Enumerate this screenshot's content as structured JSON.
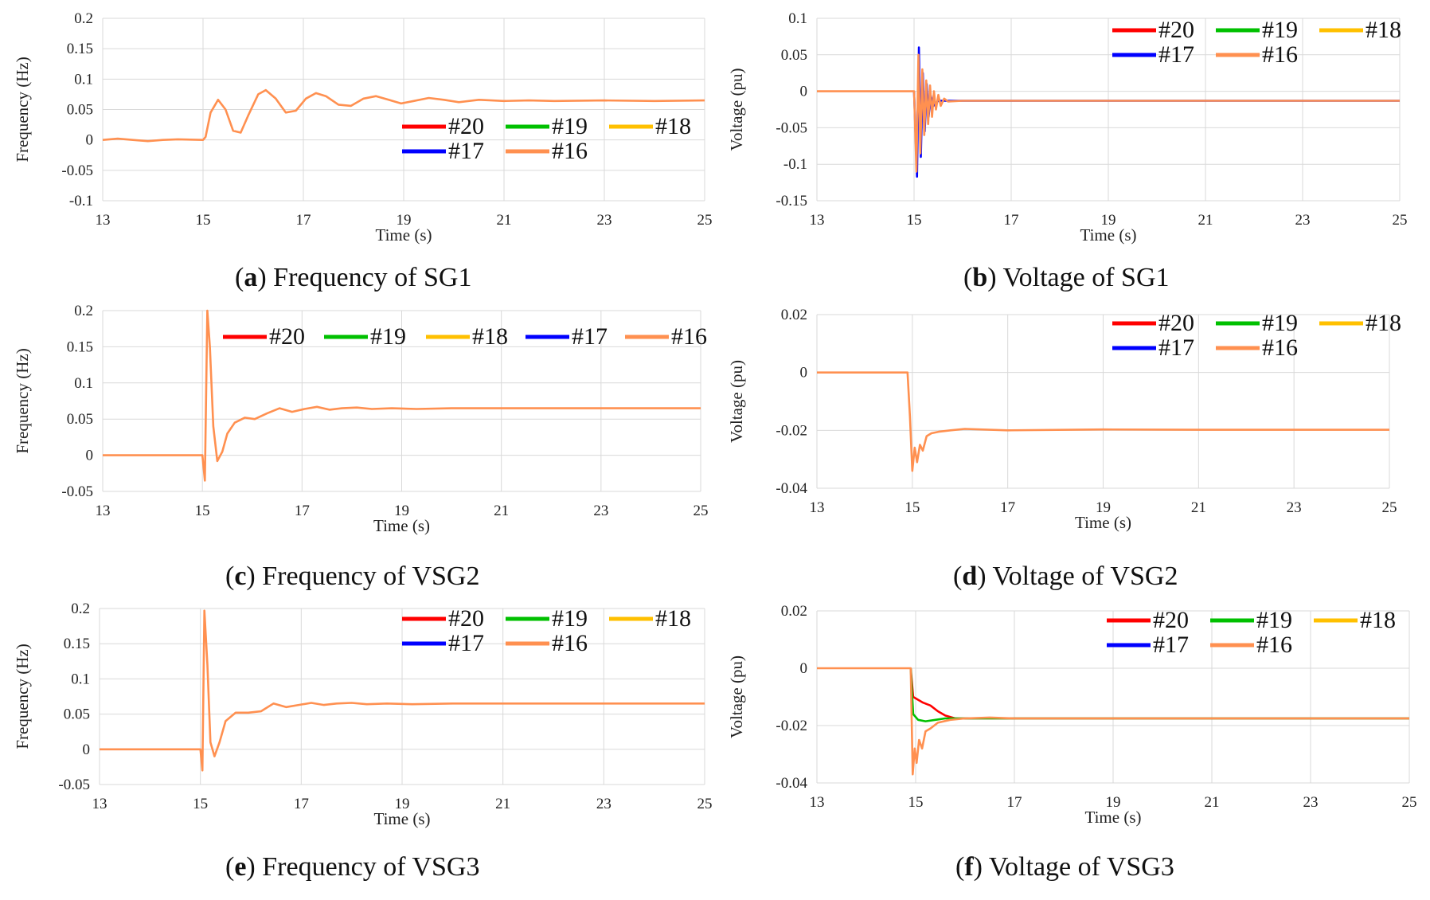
{
  "legend_colors": {
    "#20": "#ff0000",
    "#19": "#00c000",
    "#18": "#ffc000",
    "#17": "#0000ff",
    "#16": "#ff9050"
  },
  "chart_data": [
    {
      "id": "a",
      "type": "line",
      "caption": {
        "letter": "a",
        "text": "Frequency of SG1"
      },
      "xlabel": "Time (s)",
      "ylabel": "Frequency (Hz)",
      "xlim": [
        13,
        25
      ],
      "ylim": [
        -0.1,
        0.2
      ],
      "xticks": [
        "13",
        "15",
        "17",
        "19",
        "21",
        "23",
        "25"
      ],
      "yticks": [
        "0.2",
        "0.15",
        "0.1",
        "0.05",
        "0",
        "-0.05",
        "-0.1"
      ],
      "legend": [
        "#20",
        "#19",
        "#18",
        "#17",
        "#16"
      ],
      "legend_position": "lower-right",
      "series": [
        {
          "name": "#20",
          "color": "#ff0000"
        },
        {
          "name": "#19",
          "color": "#00c000"
        },
        {
          "name": "#18",
          "color": "#ffc000"
        },
        {
          "name": "#17",
          "color": "#0000ff"
        },
        {
          "name": "#16",
          "color": "#ff9050",
          "x": [
            13,
            13.3,
            13.6,
            13.9,
            14.2,
            14.5,
            15.0,
            15.05,
            15.15,
            15.3,
            15.45,
            15.6,
            15.75,
            15.9,
            16.1,
            16.25,
            16.45,
            16.65,
            16.85,
            17.05,
            17.25,
            17.45,
            17.7,
            17.95,
            18.2,
            18.45,
            18.7,
            18.95,
            19.2,
            19.5,
            19.8,
            20.1,
            20.5,
            21,
            21.5,
            22,
            23,
            24,
            25
          ],
          "y": [
            0,
            0.002,
            0,
            -0.002,
            0,
            0.001,
            0,
            0.005,
            0.045,
            0.066,
            0.05,
            0.015,
            0.012,
            0.04,
            0.075,
            0.082,
            0.068,
            0.045,
            0.048,
            0.068,
            0.077,
            0.072,
            0.058,
            0.056,
            0.068,
            0.072,
            0.066,
            0.06,
            0.064,
            0.069,
            0.066,
            0.062,
            0.066,
            0.064,
            0.065,
            0.064,
            0.065,
            0.064,
            0.065
          ]
        }
      ]
    },
    {
      "id": "b",
      "type": "line",
      "caption": {
        "letter": "b",
        "text": "Voltage of SG1"
      },
      "xlabel": "Time (s)",
      "ylabel": "Voltage (pu)",
      "xlim": [
        13,
        25
      ],
      "ylim": [
        -0.15,
        0.1
      ],
      "xticks": [
        "13",
        "15",
        "17",
        "19",
        "21",
        "23",
        "25"
      ],
      "yticks": [
        "0.1",
        "0.05",
        "0",
        "-0.05",
        "-0.1",
        "-0.15"
      ],
      "legend": [
        "#20",
        "#19",
        "#18",
        "#17",
        "#16"
      ],
      "legend_position": "top-right",
      "series": [
        {
          "name": "#20",
          "color": "#ff0000"
        },
        {
          "name": "#19",
          "color": "#00c000"
        },
        {
          "name": "#18",
          "color": "#ffc000"
        },
        {
          "name": "#17",
          "color": "#0000ff",
          "x": [
            15.0,
            15.06,
            15.1,
            15.14,
            15.18,
            15.22,
            15.26,
            15.3,
            15.34,
            15.4,
            15.5,
            16,
            25
          ],
          "y": [
            0,
            -0.117,
            0.06,
            -0.09,
            0.025,
            -0.055,
            0.01,
            -0.035,
            -0.005,
            -0.02,
            -0.013,
            -0.013,
            -0.013
          ]
        },
        {
          "name": "#16",
          "color": "#ff9050",
          "x": [
            13,
            15.0,
            15.05,
            15.09,
            15.13,
            15.17,
            15.21,
            15.25,
            15.29,
            15.33,
            15.37,
            15.41,
            15.45,
            15.5,
            15.55,
            15.62,
            15.7,
            16,
            17,
            19,
            21,
            23,
            25
          ],
          "y": [
            0,
            0,
            -0.11,
            0.05,
            -0.085,
            0.03,
            -0.06,
            0.015,
            -0.045,
            0.008,
            -0.035,
            0.0,
            -0.025,
            -0.005,
            -0.02,
            -0.01,
            -0.014,
            -0.013,
            -0.013,
            -0.013,
            -0.013,
            -0.013,
            -0.013
          ]
        }
      ]
    },
    {
      "id": "c",
      "type": "line",
      "caption": {
        "letter": "c",
        "text": "Frequency of VSG2"
      },
      "xlabel": "Time (s)",
      "ylabel": "Frequency (Hz)",
      "xlim": [
        13,
        25
      ],
      "ylim": [
        -0.05,
        0.2
      ],
      "xticks": [
        "13",
        "15",
        "17",
        "19",
        "21",
        "23",
        "25"
      ],
      "yticks": [
        "0.2",
        "0.15",
        "0.1",
        "0.05",
        "0",
        "-0.05"
      ],
      "legend": [
        "#20",
        "#19",
        "#18",
        "#17",
        "#16"
      ],
      "legend_position": "top",
      "series": [
        {
          "name": "#20",
          "color": "#ff0000"
        },
        {
          "name": "#19",
          "color": "#00c000"
        },
        {
          "name": "#18",
          "color": "#ffc000"
        },
        {
          "name": "#17",
          "color": "#0000ff"
        },
        {
          "name": "#16",
          "color": "#ff9050",
          "x": [
            13,
            14,
            15.0,
            15.05,
            15.1,
            15.15,
            15.22,
            15.3,
            15.4,
            15.5,
            15.65,
            15.85,
            16.05,
            16.3,
            16.55,
            16.8,
            17.05,
            17.3,
            17.55,
            17.8,
            18.1,
            18.4,
            18.8,
            19.3,
            20,
            21,
            22,
            23,
            24,
            25
          ],
          "y": [
            0,
            0,
            0,
            -0.035,
            0.2,
            0.15,
            0.04,
            -0.008,
            0.005,
            0.03,
            0.045,
            0.052,
            0.05,
            0.058,
            0.065,
            0.06,
            0.064,
            0.067,
            0.063,
            0.065,
            0.066,
            0.064,
            0.065,
            0.064,
            0.065,
            0.065,
            0.065,
            0.065,
            0.065,
            0.065
          ]
        }
      ]
    },
    {
      "id": "d",
      "type": "line",
      "caption": {
        "letter": "d",
        "text": "Voltage of VSG2"
      },
      "xlabel": "Time (s)",
      "ylabel": "Voltage (pu)",
      "xlim": [
        13,
        25
      ],
      "ylim": [
        -0.04,
        0.02
      ],
      "xticks": [
        "13",
        "15",
        "17",
        "19",
        "21",
        "23",
        "25"
      ],
      "yticks": [
        "0.02",
        "0",
        "-0.02",
        "-0.04"
      ],
      "legend": [
        "#20",
        "#19",
        "#18",
        "#17",
        "#16"
      ],
      "legend_position": "top-right",
      "series": [
        {
          "name": "#20",
          "color": "#ff0000"
        },
        {
          "name": "#19",
          "color": "#00c000"
        },
        {
          "name": "#18",
          "color": "#ffc000"
        },
        {
          "name": "#17",
          "color": "#0000ff"
        },
        {
          "name": "#16",
          "color": "#ff9050",
          "x": [
            13,
            14.9,
            14.95,
            15.0,
            15.05,
            15.1,
            15.16,
            15.22,
            15.3,
            15.4,
            15.55,
            15.8,
            16.1,
            17,
            19,
            21,
            23,
            25
          ],
          "y": [
            0,
            0,
            -0.015,
            -0.034,
            -0.026,
            -0.031,
            -0.025,
            -0.027,
            -0.022,
            -0.021,
            -0.0205,
            -0.02,
            -0.0195,
            -0.02,
            -0.0197,
            -0.0198,
            -0.0198,
            -0.0198
          ]
        }
      ]
    },
    {
      "id": "e",
      "type": "line",
      "caption": {
        "letter": "e",
        "text": "Frequency of VSG3"
      },
      "xlabel": "Time (s)",
      "ylabel": "Frequency (Hz)",
      "xlim": [
        13,
        25
      ],
      "ylim": [
        -0.05,
        0.2
      ],
      "xticks": [
        "13",
        "15",
        "17",
        "19",
        "21",
        "23",
        "25"
      ],
      "yticks": [
        "0.2",
        "0.15",
        "0.1",
        "0.05",
        "0",
        "-0.05"
      ],
      "legend": [
        "#20",
        "#19",
        "#18",
        "#17",
        "#16"
      ],
      "legend_position": "top-right",
      "series": [
        {
          "name": "#20",
          "color": "#ff0000"
        },
        {
          "name": "#19",
          "color": "#00c000"
        },
        {
          "name": "#18",
          "color": "#ffc000"
        },
        {
          "name": "#17",
          "color": "#0000ff"
        },
        {
          "name": "#16",
          "color": "#ff9050",
          "x": [
            13,
            14,
            15.0,
            15.04,
            15.08,
            15.14,
            15.2,
            15.28,
            15.38,
            15.5,
            15.7,
            15.95,
            16.2,
            16.45,
            16.7,
            16.95,
            17.2,
            17.45,
            17.7,
            18,
            18.3,
            18.7,
            19.2,
            20,
            21,
            22,
            23,
            24,
            25
          ],
          "y": [
            0,
            0,
            0,
            -0.03,
            0.197,
            0.12,
            0.01,
            -0.01,
            0.01,
            0.04,
            0.052,
            0.052,
            0.054,
            0.065,
            0.06,
            0.063,
            0.066,
            0.063,
            0.065,
            0.066,
            0.064,
            0.065,
            0.064,
            0.065,
            0.065,
            0.065,
            0.065,
            0.065,
            0.065
          ]
        }
      ]
    },
    {
      "id": "f",
      "type": "line",
      "caption": {
        "letter": "f",
        "text": "Voltage of VSG3"
      },
      "xlabel": "Time (s)",
      "ylabel": "Voltage (pu)",
      "xlim": [
        13,
        25
      ],
      "ylim": [
        -0.04,
        0.02
      ],
      "xticks": [
        "13",
        "15",
        "17",
        "19",
        "21",
        "23",
        "25"
      ],
      "yticks": [
        "0.02",
        "0",
        "-0.02",
        "-0.04"
      ],
      "legend": [
        "#20",
        "#19",
        "#18",
        "#17",
        "#16"
      ],
      "legend_position": "top-right",
      "series": [
        {
          "name": "#20",
          "color": "#ff0000",
          "x": [
            14.9,
            14.95,
            15.05,
            15.15,
            15.3,
            15.45,
            15.6,
            15.8,
            25
          ],
          "y": [
            0,
            -0.01,
            -0.011,
            -0.012,
            -0.013,
            -0.015,
            -0.0165,
            -0.0175,
            -0.0175
          ]
        },
        {
          "name": "#19",
          "color": "#00c000",
          "x": [
            14.9,
            14.95,
            15.05,
            15.2,
            15.4,
            15.6,
            25
          ],
          "y": [
            0,
            -0.016,
            -0.018,
            -0.0185,
            -0.018,
            -0.0175,
            -0.0175
          ]
        },
        {
          "name": "#18",
          "color": "#ffc000"
        },
        {
          "name": "#17",
          "color": "#0000ff"
        },
        {
          "name": "#16",
          "color": "#ff9050",
          "x": [
            13,
            14.9,
            14.94,
            14.98,
            15.02,
            15.07,
            15.13,
            15.2,
            15.3,
            15.45,
            15.7,
            16.0,
            16.5,
            17,
            19,
            21,
            23,
            25
          ],
          "y": [
            0,
            0,
            -0.037,
            -0.028,
            -0.033,
            -0.025,
            -0.028,
            -0.022,
            -0.021,
            -0.019,
            -0.018,
            -0.0175,
            -0.0172,
            -0.0175,
            -0.0175,
            -0.0175,
            -0.0175,
            -0.0175
          ]
        }
      ]
    }
  ]
}
